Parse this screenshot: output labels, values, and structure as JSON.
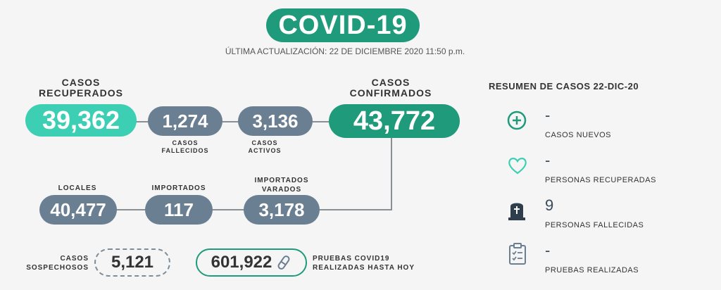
{
  "header": {
    "title": "COVID-19",
    "updated": "ÚLTIMA ACTUALIZACIÓN: 22 DE DICIEMBRE 2020 11:50 p.m."
  },
  "stats": {
    "recuperados": {
      "label": "CASOS RECUPERADOS",
      "value": "39,362"
    },
    "fallecidos": {
      "label": "CASOS FALLECIDOS",
      "value": "1,274"
    },
    "activos": {
      "label": "CASOS ACTIVOS",
      "value": "3,136"
    },
    "confirmados": {
      "label": "CASOS CONFIRMADOS",
      "value": "43,772"
    },
    "locales": {
      "label": "LOCALES",
      "value": "40,477"
    },
    "importados": {
      "label": "IMPORTADOS",
      "value": "117"
    },
    "importados_varados": {
      "label": "IMPORTADOS VARADOS",
      "value": "3,178"
    },
    "sospechosos": {
      "label": "CASOS SOSPECHOSOS",
      "value": "5,121"
    },
    "pruebas": {
      "label": "PRUEBAS COVID19 REALIZADAS HASTA HOY",
      "value": "601,922"
    }
  },
  "resumen": {
    "title": "RESUMEN DE CASOS 22-DIC-20",
    "items": [
      {
        "icon": "plus-circle-icon",
        "value": "-",
        "label": "CASOS NUEVOS"
      },
      {
        "icon": "heart-icon",
        "value": "-",
        "label": "PERSONAS RECUPERADAS"
      },
      {
        "icon": "tombstone-icon",
        "value": "9",
        "label": "PERSONAS FALLECIDAS"
      },
      {
        "icon": "clipboard-icon",
        "value": "-",
        "label": "PRUEBAS REALIZADAS"
      }
    ]
  },
  "colors": {
    "accent_green": "#1f9a7a",
    "light_teal": "#3ccfb3",
    "slate": "#6b7f93"
  }
}
